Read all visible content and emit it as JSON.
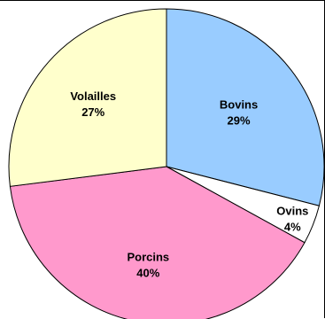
{
  "chart_data": {
    "type": "pie",
    "slices": [
      {
        "label": "Bovins",
        "value": 29,
        "value_label": "29%",
        "color": "#99CCFF"
      },
      {
        "label": "Ovins",
        "value": 4,
        "value_label": "4%",
        "color": "#FFFFFF"
      },
      {
        "label": "Porcins",
        "value": 40,
        "value_label": "40%",
        "color": "#FF99CC"
      },
      {
        "label": "Volailles",
        "value": 27,
        "value_label": "27%",
        "color": "#FFFFCC"
      }
    ],
    "start": "12 o'clock",
    "direction": "clockwise",
    "outline_color": "#000000"
  }
}
